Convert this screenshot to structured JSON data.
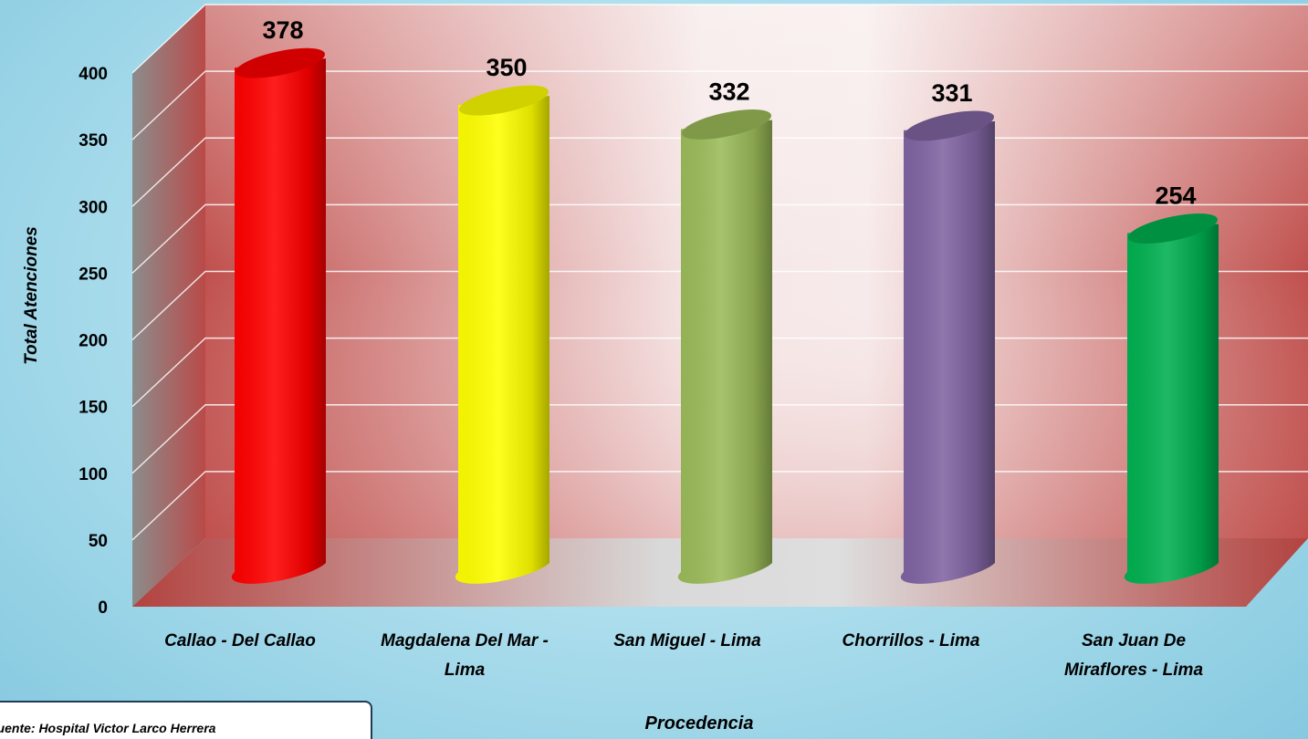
{
  "chart_data": {
    "type": "bar",
    "style": "3d-cylinder",
    "categories": [
      [
        "Callao - Del Callao"
      ],
      [
        "Magdalena Del Mar -",
        "Lima"
      ],
      [
        "San Miguel - Lima"
      ],
      [
        "Chorrillos - Lima"
      ],
      [
        "San Juan De",
        "Miraflores - Lima"
      ]
    ],
    "values": [
      378,
      350,
      332,
      331,
      254
    ],
    "colors": [
      "#ff0000",
      "#ffff00",
      "#9bbb59",
      "#8064a2",
      "#00b050"
    ],
    "ylabel": "Total Atenciones",
    "xlabel": "Procedencia",
    "ylim": [
      0,
      400
    ],
    "yticks": [
      0,
      50,
      100,
      150,
      200,
      250,
      300,
      350,
      400
    ],
    "grid": true,
    "legend": "none"
  },
  "source": "Fuente:  Hospital Victor Larco Herrera"
}
